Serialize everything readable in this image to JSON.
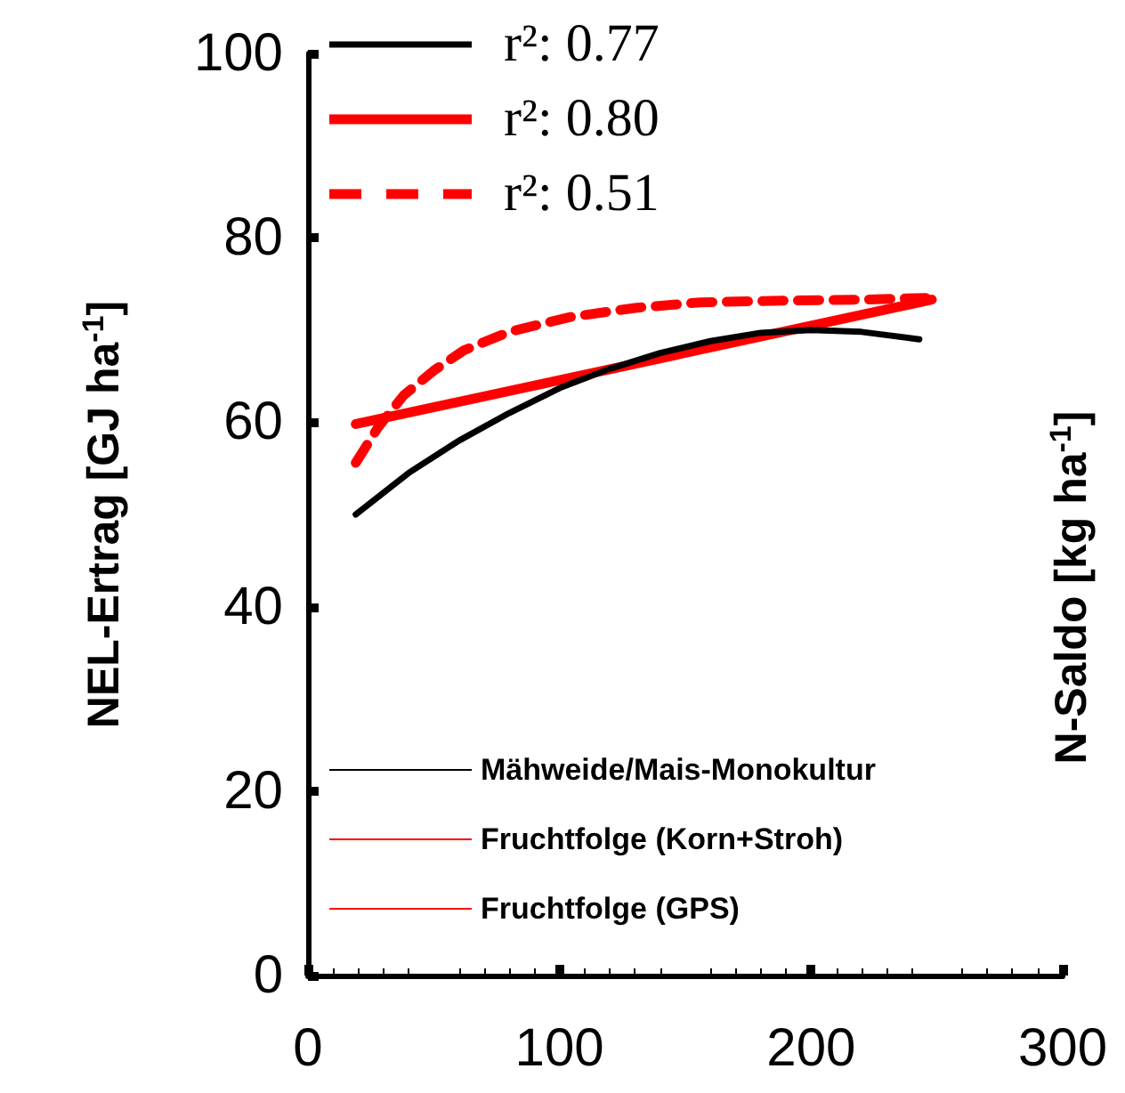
{
  "chart_data": {
    "type": "line",
    "ylabel": "NEL-Ertrag [GJ ha$^{-1}$]",
    "xlim": [
      0,
      300
    ],
    "xticks": [
      0,
      100,
      200,
      300
    ],
    "ylim": [
      0,
      100
    ],
    "yticks": [
      0,
      20,
      40,
      60,
      80,
      100
    ],
    "series": [
      {
        "name": "Mähweide/Mais-Monokultur",
        "color": "#000000",
        "x": [
          19,
          40,
          60,
          80,
          100,
          120,
          140,
          160,
          180,
          200,
          220,
          243
        ],
        "values": [
          50,
          54.5,
          58,
          61,
          63.7,
          65.8,
          67.5,
          68.8,
          69.7,
          70,
          69.8,
          69
        ]
      },
      {
        "name": "Fruchtfolge (Korn+Stroh)",
        "color": "#ff0000",
        "x": [
          19,
          248
        ],
        "values": [
          59.8,
          73.3
        ]
      },
      {
        "name": "Fruchtfolge (GPS)",
        "color": "#ff0000",
        "line_style": "dashed",
        "x": [
          19,
          28,
          38,
          50,
          62,
          80,
          104,
          130,
          156,
          190,
          220,
          248
        ],
        "values": [
          55.6,
          59.5,
          62.9,
          65.6,
          67.8,
          69.8,
          71.4,
          72.4,
          73,
          73.2,
          73.3,
          73.5
        ]
      }
    ],
    "annotations": [
      "r²: 0.77",
      "r²: 0.80",
      "r²: 0.51",
      "N-Saldo [kg ha$^{-1}$]"
    ],
    "line_style": "solid",
    "marker": "none",
    "grid": false,
    "legend": "bottom left"
  }
}
